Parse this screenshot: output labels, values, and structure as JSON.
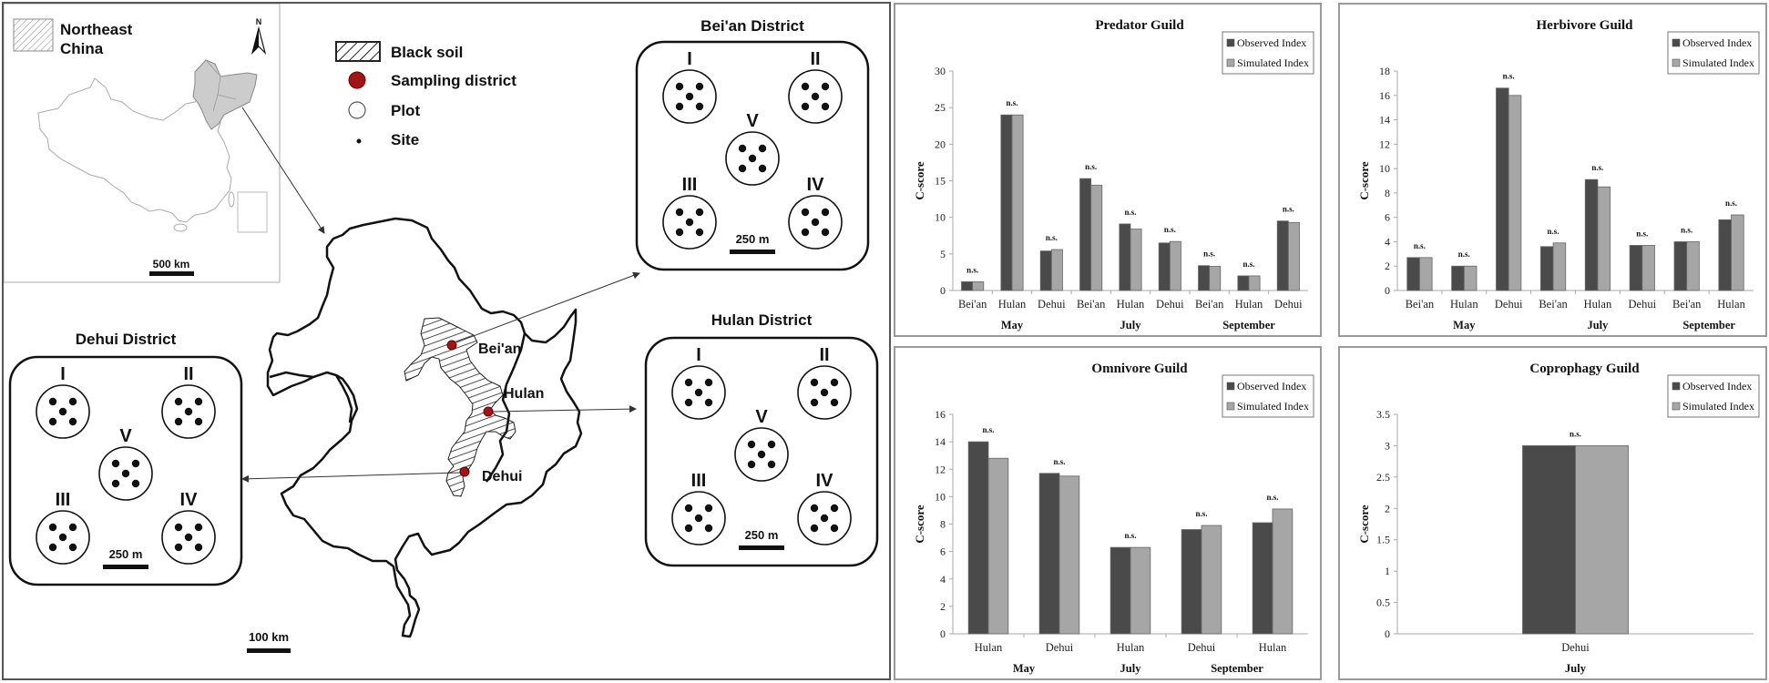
{
  "map": {
    "inset": {
      "legend_label_line1": "Northeast",
      "legend_label_line2": "China",
      "north_label": "N",
      "scale_label": "500 km"
    },
    "legend": {
      "items": [
        {
          "label": "Black soil",
          "symbol": "hatched-rect"
        },
        {
          "label": "Sampling district",
          "symbol": "red-dot"
        },
        {
          "label": "Plot",
          "symbol": "open-circle"
        },
        {
          "label": "Site",
          "symbol": "small-dot"
        }
      ],
      "district_color": "#a01515"
    },
    "region_scale_label": "100 km",
    "sampling_points": [
      {
        "label": "Bei'an"
      },
      {
        "label": "Hulan"
      },
      {
        "label": "Dehui"
      }
    ],
    "districts": [
      {
        "id": "beian",
        "title": "Bei'an District",
        "plots": [
          "I",
          "II",
          "V",
          "III",
          "IV"
        ],
        "scale_label": "250 m"
      },
      {
        "id": "hulan",
        "title": "Hulan District",
        "plots": [
          "I",
          "II",
          "V",
          "III",
          "IV"
        ],
        "scale_label": "250 m"
      },
      {
        "id": "dehui",
        "title": "Dehui District",
        "plots": [
          "I",
          "II",
          "V",
          "III",
          "IV"
        ],
        "scale_label": "250 m"
      }
    ]
  },
  "chart_data": [
    {
      "id": "predator",
      "type": "bar",
      "title": "Predator Guild",
      "ylabel": "C-score",
      "xlabel": "",
      "ylim": [
        0,
        30
      ],
      "yticks": [
        0,
        5,
        10,
        15,
        20,
        25,
        30
      ],
      "grid": false,
      "legend_position": "top-right",
      "categories": [
        "Bei'an",
        "Hulan",
        "Dehui",
        "Bei'an",
        "Hulan",
        "Dehui",
        "Bei'an",
        "Hulan",
        "Dehui"
      ],
      "groups": [
        {
          "label": "May",
          "span": [
            0,
            2
          ]
        },
        {
          "label": "July",
          "span": [
            3,
            5
          ]
        },
        {
          "label": "September",
          "span": [
            6,
            8
          ]
        }
      ],
      "annotations": [
        "n.s.",
        "n.s.",
        "n.s.",
        "n.s.",
        "n.s.",
        "n.s.",
        "n.s.",
        "n.s.",
        "n.s."
      ],
      "series": [
        {
          "name": "Observed Index",
          "color": "#4a4a4a",
          "values": [
            1.2,
            24.0,
            5.4,
            15.3,
            9.1,
            6.5,
            3.4,
            2.0,
            9.5
          ]
        },
        {
          "name": "Simulated Index",
          "color": "#a6a6a6",
          "values": [
            1.2,
            24.0,
            5.6,
            14.4,
            8.4,
            6.7,
            3.3,
            2.0,
            9.3
          ]
        }
      ]
    },
    {
      "id": "herbivore",
      "type": "bar",
      "title": "Herbivore Guild",
      "ylabel": "C-score",
      "xlabel": "",
      "ylim": [
        0,
        18
      ],
      "yticks": [
        0,
        2,
        4,
        6,
        8,
        10,
        12,
        14,
        16,
        18
      ],
      "grid": false,
      "legend_position": "top-right",
      "categories": [
        "Bei'an",
        "Hulan",
        "Dehui",
        "Bei'an",
        "Hulan",
        "Dehui",
        "Bei'an",
        "Hulan"
      ],
      "groups": [
        {
          "label": "May",
          "span": [
            0,
            2
          ]
        },
        {
          "label": "July",
          "span": [
            3,
            5
          ]
        },
        {
          "label": "September",
          "span": [
            6,
            7
          ]
        }
      ],
      "annotations": [
        "n.s.",
        "n.s.",
        "n.s.",
        "n.s.",
        "n.s.",
        "n.s.",
        "n.s.",
        "n.s."
      ],
      "series": [
        {
          "name": "Observed Index",
          "color": "#4a4a4a",
          "values": [
            2.7,
            2.0,
            16.6,
            3.6,
            9.1,
            3.7,
            4.0,
            5.8
          ]
        },
        {
          "name": "Simulated Index",
          "color": "#a6a6a6",
          "values": [
            2.7,
            2.0,
            16.0,
            3.9,
            8.5,
            3.7,
            4.0,
            6.2
          ]
        }
      ]
    },
    {
      "id": "omnivore",
      "type": "bar",
      "title": "Omnivore Guild",
      "ylabel": "C-score",
      "xlabel": "",
      "ylim": [
        0,
        16
      ],
      "yticks": [
        0,
        2,
        4,
        6,
        8,
        10,
        12,
        14,
        16
      ],
      "grid": false,
      "legend_position": "top-right",
      "categories": [
        "Hulan",
        "Dehui",
        "Hulan",
        "Dehui",
        "Hulan"
      ],
      "groups": [
        {
          "label": "May",
          "span": [
            0,
            1
          ]
        },
        {
          "label": "July",
          "span": [
            2,
            2
          ]
        },
        {
          "label": "September",
          "span": [
            3,
            4
          ]
        }
      ],
      "annotations": [
        "n.s.",
        "n.s.",
        "n.s.",
        "n.s.",
        "n.s."
      ],
      "series": [
        {
          "name": "Observed Index",
          "color": "#4a4a4a",
          "values": [
            14.0,
            11.7,
            6.3,
            7.6,
            8.1
          ]
        },
        {
          "name": "Simulated Index",
          "color": "#a6a6a6",
          "values": [
            12.8,
            11.5,
            6.3,
            7.9,
            9.1
          ]
        }
      ]
    },
    {
      "id": "coprophagy",
      "type": "bar",
      "title": "Coprophagy Guild",
      "ylabel": "C-score",
      "xlabel": "",
      "ylim": [
        0,
        3.5
      ],
      "yticks": [
        0,
        0.5,
        1,
        1.5,
        2,
        2.5,
        3,
        3.5
      ],
      "grid": false,
      "legend_position": "top-right",
      "categories": [
        "Dehui"
      ],
      "groups": [
        {
          "label": "July",
          "span": [
            0,
            0
          ]
        }
      ],
      "annotations": [
        "n.s."
      ],
      "series": [
        {
          "name": "Observed Index",
          "color": "#4a4a4a",
          "values": [
            3.0
          ]
        },
        {
          "name": "Simulated Index",
          "color": "#a6a6a6",
          "values": [
            3.0
          ]
        }
      ]
    }
  ]
}
